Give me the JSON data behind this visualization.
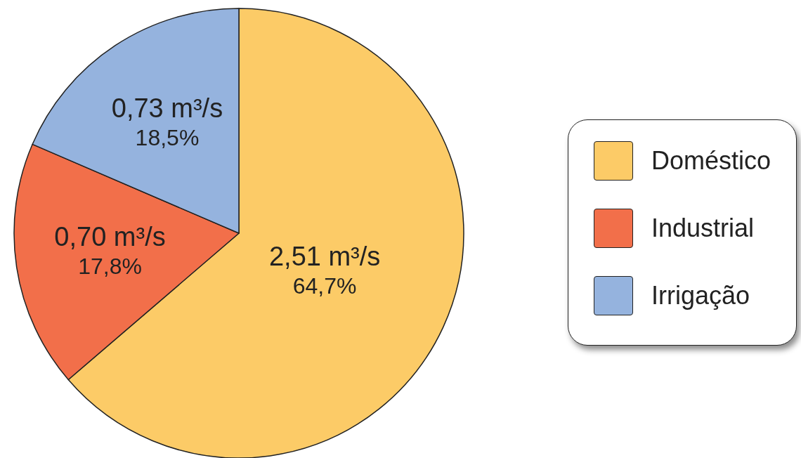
{
  "chart_data": {
    "type": "pie",
    "categories": [
      "Doméstico",
      "Industrial",
      "Irrigação"
    ],
    "values": [
      2.51,
      0.7,
      0.73
    ],
    "colors": [
      "#fccb67",
      "#f26f4a",
      "#95b3de"
    ],
    "value_labels": [
      "2,51 m³/s\n64,7%",
      "0,70 m³/s\n17,8%",
      "0,73 m³/s\n18,5%"
    ],
    "legend": "right"
  }
}
